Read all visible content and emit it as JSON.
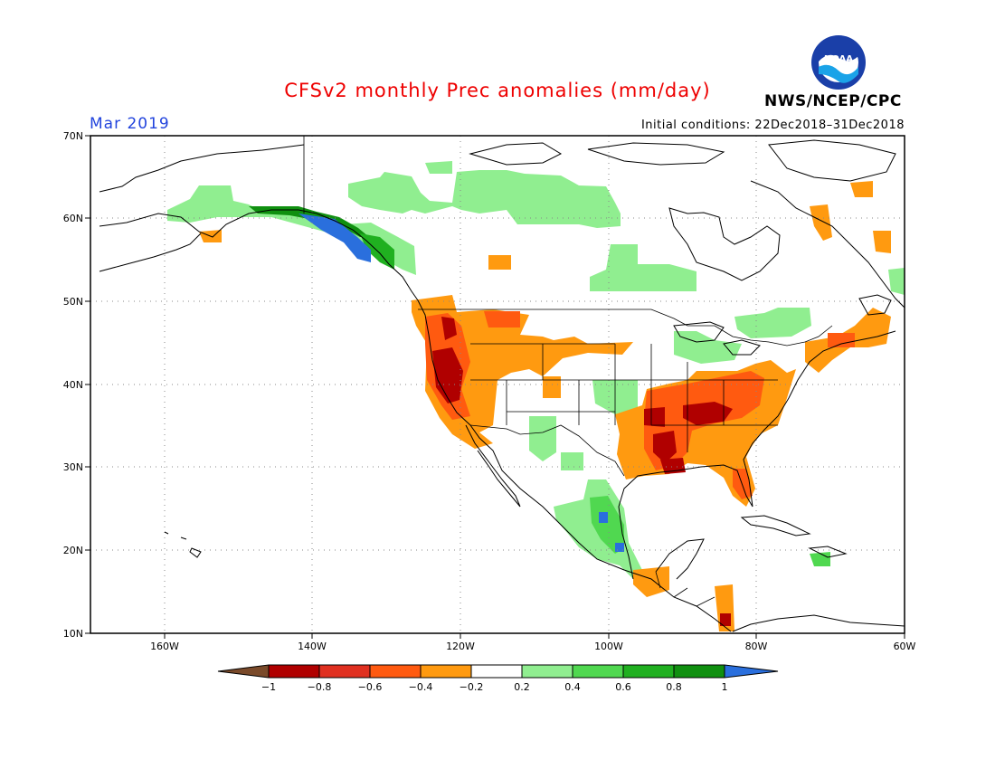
{
  "title": "CFSv2 monthly Prec anomalies (mm/day)",
  "valid_month": "Mar 2019",
  "initial_conditions": "Initial conditions: 22Dec2018–31Dec2018",
  "agency": "NWS/NCEP/CPC",
  "logo_text": "NOAA",
  "colors": {
    "title": "#ee0000",
    "month": "#2244dd",
    "coast": "#000000",
    "grid": "#888888",
    "frame": "#000000"
  },
  "map": {
    "lon_ticks": [
      "160W",
      "140W",
      "120W",
      "100W",
      "80W",
      "60W"
    ],
    "lat_ticks": [
      "70N",
      "60N",
      "50N",
      "40N",
      "30N",
      "20N",
      "10N"
    ]
  },
  "colorbar": {
    "labels": [
      "−1",
      "−0.8",
      "−0.6",
      "−0.4",
      "−0.2",
      "0.2",
      "0.4",
      "0.6",
      "0.8",
      "1"
    ],
    "colors": [
      "#7a4a2a",
      "#b00000",
      "#e03020",
      "#ff5a10",
      "#ff9a10",
      "#ffffff",
      "#90ee90",
      "#50d850",
      "#20b020",
      "#109010",
      "#2a6fdd"
    ]
  }
}
